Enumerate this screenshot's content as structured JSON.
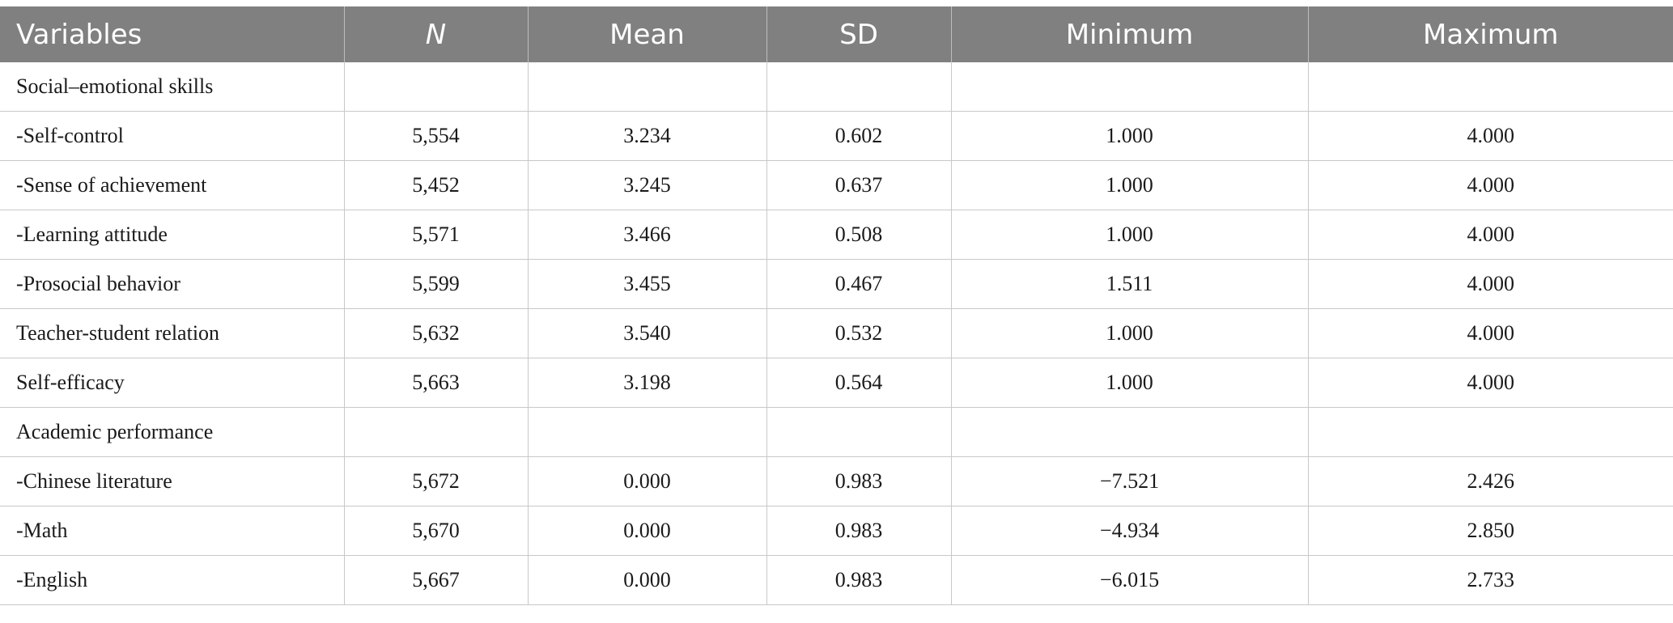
{
  "table": {
    "headers": [
      "Variables",
      "N",
      "Mean",
      "SD",
      "Minimum",
      "Maximum"
    ],
    "rows": [
      [
        "Social–emotional skills",
        "",
        "",
        "",
        "",
        ""
      ],
      [
        "-Self-control",
        "5,554",
        "3.234",
        "0.602",
        "1.000",
        "4.000"
      ],
      [
        "-Sense of achievement",
        "5,452",
        "3.245",
        "0.637",
        "1.000",
        "4.000"
      ],
      [
        "-Learning attitude",
        "5,571",
        "3.466",
        "0.508",
        "1.000",
        "4.000"
      ],
      [
        "-Prosocial behavior",
        "5,599",
        "3.455",
        "0.467",
        "1.511",
        "4.000"
      ],
      [
        "Teacher-student relation",
        "5,632",
        "3.540",
        "0.532",
        "1.000",
        "4.000"
      ],
      [
        "Self-efficacy",
        "5,663",
        "3.198",
        "0.564",
        "1.000",
        "4.000"
      ],
      [
        "Academic performance",
        "",
        "",
        "",
        "",
        ""
      ],
      [
        "-Chinese literature",
        "5,672",
        "0.000",
        "0.983",
        "−7.521",
        "2.426"
      ],
      [
        "-Math",
        "5,670",
        "0.000",
        "0.983",
        "−4.934",
        "2.850"
      ],
      [
        "-English",
        "5,667",
        "0.000",
        "0.983",
        "−6.015",
        "2.733"
      ]
    ]
  }
}
